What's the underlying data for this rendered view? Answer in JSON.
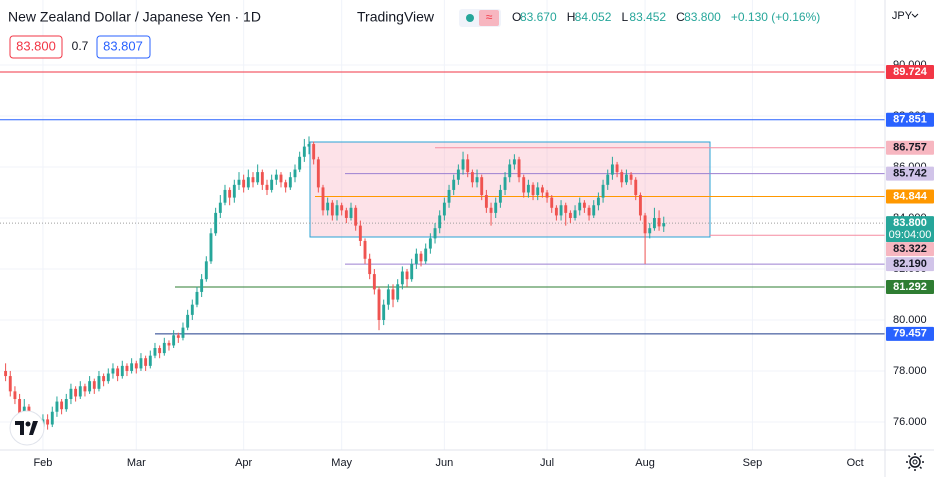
{
  "header": {
    "title": "New Zealand Dollar / Japanese Yen · 1D",
    "brand": "TradingView",
    "currency": "JPY",
    "sell": "83.800",
    "spread": "0.7",
    "buy": "83.807",
    "ohlc": [
      {
        "key": "O",
        "value": "83.670"
      },
      {
        "key": "H",
        "value": "84.052"
      },
      {
        "key": "L",
        "value": "83.452"
      },
      {
        "key": "C",
        "value": "83.800"
      }
    ],
    "change": "+0.130 (+0.16%)"
  },
  "chart_data": {
    "type": "candlestick",
    "up_color": "#26a69a",
    "down_color": "#ef5350",
    "xlim": [
      -9.2,
      180.4
    ],
    "ylim": [
      74.9,
      92.55
    ],
    "xticks": [
      {
        "value": 0,
        "label": "Feb"
      },
      {
        "value": 20,
        "label": "Mar"
      },
      {
        "value": 43,
        "label": "Apr"
      },
      {
        "value": 64,
        "label": "May"
      },
      {
        "value": 86,
        "label": "Jun"
      },
      {
        "value": 108,
        "label": "Jul"
      },
      {
        "value": 129,
        "label": "Aug"
      },
      {
        "value": 152,
        "label": "Sep"
      },
      {
        "value": 174,
        "label": "Oct"
      }
    ],
    "yticks": [
      {
        "value": 76,
        "label": "76.000"
      },
      {
        "value": 78,
        "label": "78.000"
      },
      {
        "value": 80,
        "label": "80.000"
      },
      {
        "value": 82,
        "label": "82.000"
      },
      {
        "value": 84,
        "label": "84.000"
      },
      {
        "value": 86,
        "label": "86.000"
      },
      {
        "value": 88,
        "label": "88.000"
      },
      {
        "value": 90,
        "label": "90.000"
      }
    ],
    "first_index": -8,
    "candles": [
      [
        78.0,
        78.3,
        77.6,
        77.8
      ],
      [
        77.8,
        78.0,
        77.0,
        77.2
      ],
      [
        77.2,
        77.4,
        76.7,
        76.9
      ],
      [
        76.9,
        77.1,
        76.1,
        76.3
      ],
      [
        76.3,
        76.9,
        76.1,
        76.6
      ],
      [
        76.6,
        76.7,
        75.7,
        75.9
      ],
      [
        75.9,
        76.1,
        75.4,
        75.6
      ],
      [
        75.6,
        76.0,
        75.4,
        75.8
      ],
      [
        75.8,
        76.3,
        75.6,
        76.1
      ],
      [
        76.1,
        76.3,
        75.7,
        75.9
      ],
      [
        75.9,
        76.6,
        75.8,
        76.4
      ],
      [
        76.4,
        77.0,
        76.2,
        76.8
      ],
      [
        76.8,
        76.9,
        76.3,
        76.5
      ],
      [
        76.5,
        77.1,
        76.4,
        76.9
      ],
      [
        76.9,
        77.5,
        76.7,
        77.3
      ],
      [
        77.3,
        77.4,
        76.8,
        77.0
      ],
      [
        77.0,
        77.6,
        76.9,
        77.4
      ],
      [
        77.4,
        77.5,
        77.0,
        77.2
      ],
      [
        77.2,
        77.8,
        77.1,
        77.6
      ],
      [
        77.6,
        77.7,
        77.1,
        77.3
      ],
      [
        77.3,
        78.0,
        77.2,
        77.8
      ],
      [
        77.8,
        77.9,
        77.4,
        77.6
      ],
      [
        77.6,
        78.1,
        77.5,
        77.9
      ],
      [
        77.9,
        78.3,
        77.7,
        78.1
      ],
      [
        78.1,
        78.2,
        77.6,
        77.8
      ],
      [
        77.8,
        78.4,
        77.7,
        78.2
      ],
      [
        78.2,
        78.3,
        77.8,
        78.0
      ],
      [
        78.0,
        78.5,
        77.9,
        78.3
      ],
      [
        78.3,
        78.4,
        77.9,
        78.1
      ],
      [
        78.1,
        78.7,
        78.0,
        78.5
      ],
      [
        78.5,
        78.6,
        78.0,
        78.2
      ],
      [
        78.2,
        78.8,
        78.1,
        78.6
      ],
      [
        78.6,
        79.1,
        78.5,
        78.9
      ],
      [
        78.9,
        79.0,
        78.5,
        78.7
      ],
      [
        78.7,
        79.3,
        78.6,
        79.1
      ],
      [
        79.1,
        79.2,
        78.8,
        79.0
      ],
      [
        79.0,
        79.6,
        78.9,
        79.4
      ],
      [
        79.4,
        79.5,
        79.1,
        79.3
      ],
      [
        79.3,
        79.9,
        79.2,
        79.7
      ],
      [
        79.7,
        80.4,
        79.6,
        80.2
      ],
      [
        80.2,
        80.8,
        80.0,
        80.6
      ],
      [
        80.6,
        81.3,
        80.5,
        81.1
      ],
      [
        81.1,
        81.8,
        80.9,
        81.6
      ],
      [
        81.6,
        82.5,
        81.5,
        82.3
      ],
      [
        82.3,
        83.6,
        82.2,
        83.4
      ],
      [
        83.4,
        84.4,
        83.3,
        84.2
      ],
      [
        84.2,
        84.9,
        84.0,
        84.6
      ],
      [
        84.6,
        85.3,
        84.5,
        85.1
      ],
      [
        85.1,
        85.2,
        84.5,
        84.8
      ],
      [
        84.8,
        85.5,
        84.6,
        85.3
      ],
      [
        85.3,
        85.8,
        85.1,
        85.5
      ],
      [
        85.5,
        85.7,
        85.0,
        85.2
      ],
      [
        85.2,
        85.9,
        85.1,
        85.6
      ],
      [
        85.6,
        85.8,
        85.2,
        85.4
      ],
      [
        85.4,
        86.1,
        85.3,
        85.8
      ],
      [
        85.8,
        85.9,
        85.1,
        85.3
      ],
      [
        85.3,
        85.5,
        84.9,
        85.1
      ],
      [
        85.1,
        85.7,
        85.0,
        85.5
      ],
      [
        85.5,
        85.9,
        85.3,
        85.7
      ],
      [
        85.7,
        85.8,
        85.2,
        85.4
      ],
      [
        85.4,
        85.5,
        85.0,
        85.2
      ],
      [
        85.2,
        85.8,
        85.1,
        85.6
      ],
      [
        85.6,
        86.1,
        85.4,
        85.9
      ],
      [
        85.9,
        86.6,
        85.8,
        86.4
      ],
      [
        86.4,
        87.1,
        86.2,
        86.8
      ],
      [
        86.8,
        87.2,
        86.5,
        86.9
      ],
      [
        86.9,
        87.0,
        86.1,
        86.3
      ],
      [
        86.3,
        86.4,
        85.0,
        85.2
      ],
      [
        85.2,
        85.3,
        84.1,
        84.3
      ],
      [
        84.3,
        84.8,
        84.1,
        84.6
      ],
      [
        84.6,
        84.7,
        83.9,
        84.1
      ],
      [
        84.1,
        84.7,
        83.9,
        84.5
      ],
      [
        84.5,
        84.6,
        84.1,
        84.3
      ],
      [
        84.3,
        84.4,
        83.8,
        84.0
      ],
      [
        84.0,
        84.6,
        83.9,
        84.4
      ],
      [
        84.4,
        84.5,
        83.5,
        83.7
      ],
      [
        83.7,
        83.9,
        82.9,
        83.1
      ],
      [
        83.1,
        83.2,
        82.2,
        82.4
      ],
      [
        82.4,
        82.6,
        81.6,
        81.8
      ],
      [
        81.8,
        82.0,
        81.0,
        81.2
      ],
      [
        81.2,
        81.3,
        79.6,
        80.0
      ],
      [
        80.0,
        80.8,
        79.8,
        80.6
      ],
      [
        80.6,
        81.4,
        80.4,
        81.2
      ],
      [
        81.2,
        81.4,
        80.5,
        80.8
      ],
      [
        80.8,
        81.6,
        80.7,
        81.4
      ],
      [
        81.4,
        82.1,
        81.2,
        81.9
      ],
      [
        81.9,
        82.0,
        81.3,
        81.6
      ],
      [
        81.6,
        82.4,
        81.5,
        82.2
      ],
      [
        82.2,
        82.8,
        82.0,
        82.6
      ],
      [
        82.6,
        82.7,
        82.1,
        82.3
      ],
      [
        82.3,
        83.0,
        82.2,
        82.8
      ],
      [
        82.8,
        83.4,
        82.6,
        83.2
      ],
      [
        83.2,
        83.8,
        83.0,
        83.6
      ],
      [
        83.6,
        84.3,
        83.4,
        84.1
      ],
      [
        84.1,
        84.8,
        83.9,
        84.6
      ],
      [
        84.6,
        85.3,
        84.4,
        85.1
      ],
      [
        85.1,
        85.7,
        84.9,
        85.5
      ],
      [
        85.5,
        86.1,
        85.3,
        85.9
      ],
      [
        85.9,
        86.6,
        85.7,
        86.3
      ],
      [
        86.3,
        86.5,
        85.6,
        85.8
      ],
      [
        85.8,
        85.9,
        85.2,
        85.4
      ],
      [
        85.4,
        85.9,
        85.2,
        85.6
      ],
      [
        85.6,
        85.7,
        84.7,
        84.9
      ],
      [
        84.9,
        85.1,
        84.2,
        84.4
      ],
      [
        84.4,
        84.6,
        83.7,
        84.2
      ],
      [
        84.2,
        84.8,
        84.0,
        84.6
      ],
      [
        84.6,
        85.3,
        84.4,
        85.1
      ],
      [
        85.1,
        85.8,
        84.9,
        85.6
      ],
      [
        85.6,
        86.3,
        85.4,
        86.1
      ],
      [
        86.1,
        86.5,
        85.9,
        86.3
      ],
      [
        86.3,
        86.4,
        85.4,
        85.6
      ],
      [
        85.6,
        85.7,
        84.8,
        85.0
      ],
      [
        85.0,
        85.5,
        84.8,
        85.3
      ],
      [
        85.3,
        85.4,
        84.7,
        84.9
      ],
      [
        84.9,
        85.4,
        84.7,
        85.2
      ],
      [
        85.2,
        85.3,
        84.8,
        85.0
      ],
      [
        85.0,
        85.1,
        84.6,
        84.8
      ],
      [
        84.8,
        84.9,
        84.2,
        84.4
      ],
      [
        84.4,
        84.5,
        83.9,
        84.1
      ],
      [
        84.1,
        84.7,
        83.9,
        84.5
      ],
      [
        84.5,
        84.6,
        83.7,
        84.2
      ],
      [
        84.2,
        84.3,
        83.8,
        84.0
      ],
      [
        84.0,
        84.5,
        83.9,
        84.3
      ],
      [
        84.3,
        84.8,
        84.1,
        84.6
      ],
      [
        84.6,
        84.7,
        84.2,
        84.4
      ],
      [
        84.4,
        84.5,
        83.9,
        84.1
      ],
      [
        84.1,
        84.7,
        84.0,
        84.5
      ],
      [
        84.5,
        85.0,
        84.3,
        84.8
      ],
      [
        84.8,
        85.5,
        84.6,
        85.3
      ],
      [
        85.3,
        85.9,
        85.1,
        85.7
      ],
      [
        85.7,
        86.4,
        85.5,
        86.1
      ],
      [
        86.1,
        86.2,
        85.6,
        85.8
      ],
      [
        85.8,
        85.9,
        85.2,
        85.4
      ],
      [
        85.4,
        85.9,
        85.3,
        85.7
      ],
      [
        85.7,
        85.8,
        85.3,
        85.5
      ],
      [
        85.5,
        85.6,
        84.7,
        84.9
      ],
      [
        84.9,
        85.0,
        83.9,
        84.1
      ],
      [
        84.1,
        84.2,
        82.2,
        83.4
      ],
      [
        83.4,
        83.8,
        83.2,
        83.6
      ],
      [
        83.6,
        84.4,
        83.5,
        84.0
      ],
      [
        84.0,
        84.3,
        83.5,
        83.67
      ],
      [
        83.67,
        84.052,
        83.452,
        83.8
      ]
    ],
    "levels": [
      {
        "value": 89.724,
        "label": "89.724",
        "color": "#f23645",
        "text_color": "#ffffff"
      },
      {
        "value": 87.851,
        "label": "87.851",
        "color": "#2962ff",
        "text_color": "#ffffff",
        "fill": "#bbd0f7"
      },
      {
        "value": 86.757,
        "label": "86.757",
        "color": "#f7b6c0",
        "text_color": "#131722",
        "stroke": "#f58ca0"
      },
      {
        "value": 85.742,
        "label": "85.742",
        "color": "#d1c4e9",
        "text_color": "#131722",
        "stroke": "#9c7fd1"
      },
      {
        "value": 84.844,
        "label": "84.844",
        "color": "#ff9800",
        "text_color": "#ffffff"
      },
      {
        "value": 83.8,
        "label": "83.800",
        "color": "#26a69a",
        "text_color": "#ffffff",
        "stroke": "#9e9e9e",
        "sub": "09:04:00"
      },
      {
        "value": 83.322,
        "label": "83.322",
        "color": "#f7b6c0",
        "text_color": "#131722",
        "stroke": "#f58ca0"
      },
      {
        "value": 82.19,
        "label": "82.190",
        "color": "#d1c4e9",
        "text_color": "#131722",
        "stroke": "#9c7fd1"
      },
      {
        "value": 81.292,
        "label": "81.292",
        "color": "#2e7d32",
        "text_color": "#ffffff"
      },
      {
        "value": 79.457,
        "label": "79.457",
        "color": "#2962ff",
        "text_color": "#ffffff",
        "stroke": "#1e3a8a"
      }
    ]
  }
}
